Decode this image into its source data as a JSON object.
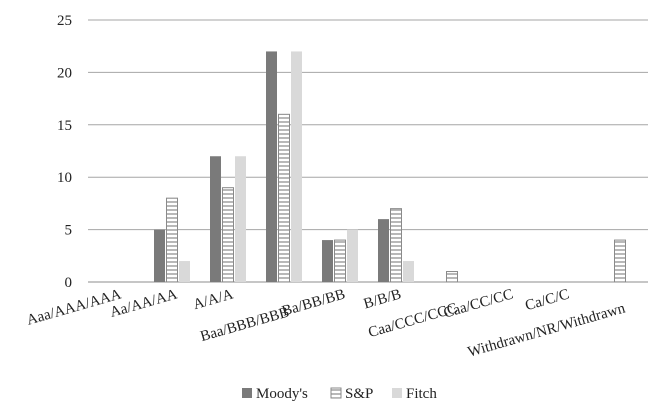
{
  "chart_data": {
    "type": "bar",
    "title": "",
    "xlabel": "",
    "ylabel": "",
    "ylim": [
      0,
      25
    ],
    "yticks": [
      0,
      5,
      10,
      15,
      20,
      25
    ],
    "grid": true,
    "legend_position": "bottom",
    "categories": [
      "Aaa/AAA/AAA",
      "Aa/AA/AA",
      "A/A/A",
      "Baa/BBB/BBB",
      "Ba/BB/BB",
      "B/B/B",
      "Caa/CCC/CCC",
      "Caa/CC/CC",
      "Ca/C/C",
      "Withdrawn/NR/Withdrawn"
    ],
    "series": [
      {
        "name": "Moody's",
        "values": [
          0,
          5,
          12,
          22,
          4,
          6,
          0,
          0,
          0,
          0
        ],
        "color": "#7a7a7a",
        "pattern": "solid"
      },
      {
        "name": "S&P",
        "values": [
          0,
          8,
          9,
          16,
          4,
          7,
          1,
          0,
          0,
          4
        ],
        "color": "#ffffff",
        "pattern": "horizontal-lines"
      },
      {
        "name": "Fitch",
        "values": [
          0,
          2,
          12,
          22,
          5,
          2,
          0,
          0,
          0,
          0
        ],
        "color": "#d9d9d9",
        "pattern": "solid"
      }
    ]
  }
}
